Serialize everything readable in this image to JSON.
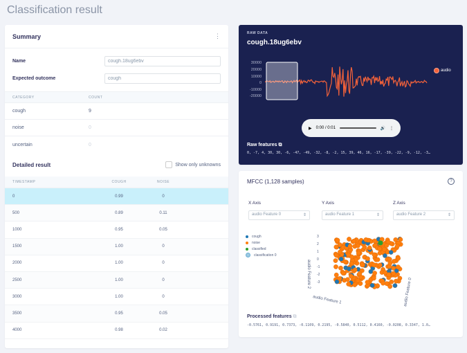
{
  "page": {
    "title": "Classification result"
  },
  "summary": {
    "title": "Summary",
    "name_label": "Name",
    "name_value": "cough.18ug6ebv",
    "expected_label": "Expected outcome",
    "expected_value": "cough",
    "category_header": "Category",
    "count_header": "Count",
    "categories": [
      {
        "name": "cough",
        "count": "9"
      },
      {
        "name": "noise",
        "count": "0"
      },
      {
        "name": "uncertain",
        "count": "0"
      }
    ]
  },
  "detailed": {
    "title": "Detailed result",
    "show_unknowns_label": "Show only unknowns",
    "headers": [
      "Timestamp",
      "Cough",
      "Noise"
    ],
    "rows": [
      {
        "timestamp": "0",
        "cough": "0.99",
        "noise": "0"
      },
      {
        "timestamp": "500",
        "cough": "0.89",
        "noise": "0.11"
      },
      {
        "timestamp": "1000",
        "cough": "0.95",
        "noise": "0.05"
      },
      {
        "timestamp": "1500",
        "cough": "1.00",
        "noise": "0"
      },
      {
        "timestamp": "2000",
        "cough": "1.00",
        "noise": "0"
      },
      {
        "timestamp": "2500",
        "cough": "1.00",
        "noise": "0"
      },
      {
        "timestamp": "3000",
        "cough": "1.00",
        "noise": "0"
      },
      {
        "timestamp": "3500",
        "cough": "0.95",
        "noise": "0.05"
      },
      {
        "timestamp": "4000",
        "cough": "0.98",
        "noise": "0.02"
      }
    ]
  },
  "raw": {
    "label": "RAW DATA",
    "title": "cough.18ug6ebv",
    "y_ticks": [
      "30000",
      "20000",
      "10000",
      "0",
      "-10000",
      "-20000"
    ],
    "legend": "audio",
    "player_time": "0:00 / 0:01",
    "features_label": "Raw features",
    "features_values": "0, -7, 4, 30, 30, -6, -47, -49, -32, -8, -2, 15, 39, 46, 16, -17, -39, -22, -9, -12, -3…"
  },
  "mfcc": {
    "title": "MFCC (1,128 samples)",
    "x_axis_label": "X Axis",
    "y_axis_label": "Y Axis",
    "z_axis_label": "Z Axis",
    "x_axis_value": "audio Feature 0",
    "y_axis_value": "audio Feature 1",
    "z_axis_value": "audio Feature 2",
    "legend": [
      "cough",
      "noise",
      "classified",
      "classification 0"
    ],
    "plot_axis_labels": {
      "x": "audio Feature 0",
      "y": "audio Feature 1",
      "z": "audio Feature 2"
    },
    "z_ticks": [
      "3",
      "2",
      "1",
      "0",
      "-1",
      "-2",
      "-3"
    ],
    "processed_label": "Processed features",
    "processed_values": "-0.5761, 0.9191, 0.7373, -0.1109, 0.2195, -0.5840, 0.5112, 0.4160, -0.0208, 0.3347, 1.0…"
  },
  "colors": {
    "cough": "#1f77b4",
    "noise": "#ff7f0e",
    "classified": "#2ca02c",
    "waveform": "#f4623a",
    "selected_row": "#c9f0fb"
  }
}
